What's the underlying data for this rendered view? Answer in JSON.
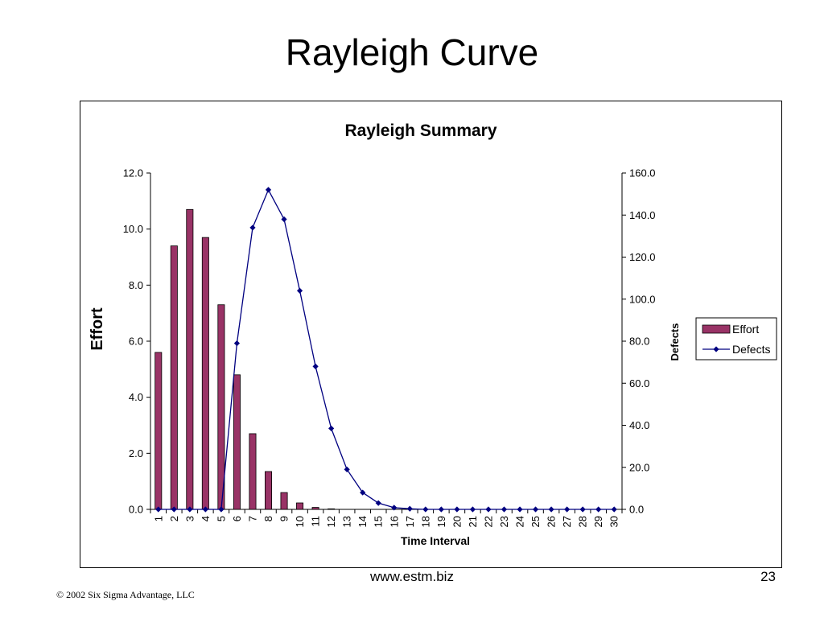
{
  "slide": {
    "title": "Rayleigh Curve",
    "website": "www.estm.biz",
    "page_number": "23",
    "copyright": "© 2002 Six Sigma Advantage, LLC"
  },
  "chart_data": {
    "type": "bar",
    "title": "Rayleigh Summary",
    "xlabel": "Time Interval",
    "ylabel": "Effort",
    "y2label": "Defects",
    "categories": [
      "1",
      "2",
      "3",
      "4",
      "5",
      "6",
      "7",
      "8",
      "9",
      "10",
      "11",
      "12",
      "13",
      "14",
      "15",
      "16",
      "17",
      "18",
      "19",
      "20",
      "21",
      "22",
      "23",
      "24",
      "25",
      "26",
      "27",
      "28",
      "29",
      "30"
    ],
    "ylim": [
      0,
      12
    ],
    "y2lim": [
      0,
      160
    ],
    "yticks": [
      "0.0",
      "2.0",
      "4.0",
      "6.0",
      "8.0",
      "10.0",
      "12.0"
    ],
    "y2ticks": [
      "0.0",
      "20.0",
      "40.0",
      "60.0",
      "80.0",
      "100.0",
      "120.0",
      "140.0",
      "160.0"
    ],
    "series": [
      {
        "name": "Effort",
        "type": "bar",
        "axis": "left",
        "color": "#993366",
        "values": [
          5.6,
          9.4,
          10.7,
          9.7,
          7.3,
          4.8,
          2.7,
          1.35,
          0.6,
          0.23,
          0.07,
          0.02,
          0,
          0,
          0,
          0,
          0,
          0,
          0,
          0,
          0,
          0,
          0,
          0,
          0,
          0,
          0,
          0,
          0,
          0
        ]
      },
      {
        "name": "Defects",
        "type": "line",
        "axis": "right",
        "color": "#000080",
        "values": [
          0,
          0,
          0,
          0,
          0,
          79,
          134,
          152,
          138,
          104,
          68,
          38.5,
          19,
          8,
          3,
          0.8,
          0.3,
          0,
          0,
          0,
          0,
          0,
          0,
          0,
          0,
          0,
          0,
          0,
          0,
          0
        ]
      }
    ],
    "legend": {
      "position": "right",
      "entries": [
        "Effort",
        "Defects"
      ]
    }
  }
}
